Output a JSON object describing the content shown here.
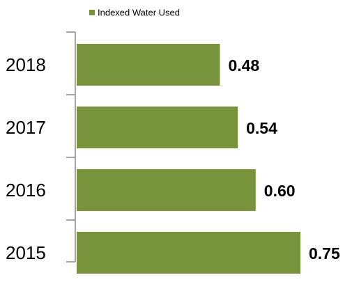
{
  "chart_data": {
    "type": "barh",
    "legend": "top",
    "series": [
      {
        "name": "Indexed Water Used",
        "color": "#77933c",
        "values": [
          0.48,
          0.54,
          0.6,
          0.75
        ],
        "value_labels": [
          "0.48",
          "0.54",
          "0.60",
          "0.75"
        ]
      }
    ],
    "categories": [
      "2018",
      "2017",
      "2016",
      "2015"
    ]
  }
}
